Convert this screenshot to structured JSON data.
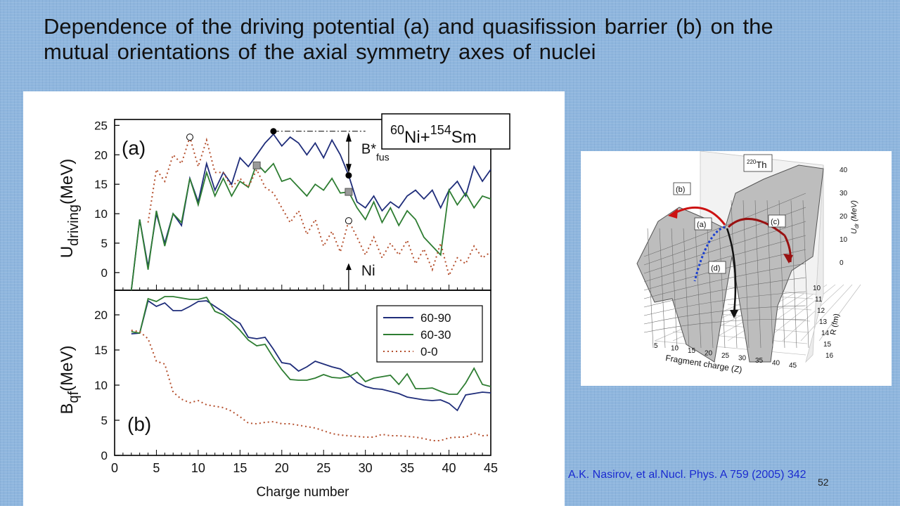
{
  "slide": {
    "title": "Dependence of  the driving potential (a) and  quasifission barrier (b) on  the mutual orientations of the  axial symmetry axes of nuclei",
    "citation": "A.K. Nasirov, et al.Nucl. Phys. A  759 (2005) 342",
    "page_number": "52"
  },
  "chart_data": [
    {
      "type": "line",
      "panel_label": "(a)",
      "reaction_label": {
        "a1": "60",
        "e1": "Ni",
        "plus": "+",
        "a2": "154",
        "e2": "Sm"
      },
      "ylabel": {
        "main": "U",
        "sub": "driving",
        "unit": "(MeV)"
      },
      "ylim": [
        -3,
        26
      ],
      "yticks": [
        0,
        5,
        10,
        15,
        20,
        25
      ],
      "xlim": [
        0,
        45
      ],
      "annotation_barrier": {
        "main": "B*",
        "sub": "fus"
      },
      "annotation_projectile": "Ni",
      "annotation_x": 28,
      "markers": {
        "filled_circles": [
          [
            19,
            24
          ],
          [
            28,
            16.5
          ]
        ],
        "squares": [
          [
            17,
            18.2
          ],
          [
            28,
            13.7
          ]
        ],
        "open_circles": [
          [
            9,
            23
          ],
          [
            28,
            8.8
          ]
        ]
      },
      "series": [
        {
          "name": "60-90",
          "color": "#1f2d7a",
          "style": "solid",
          "x": [
            2,
            3,
            4,
            5,
            6,
            7,
            8,
            9,
            10,
            11,
            12,
            13,
            14,
            15,
            16,
            17,
            18,
            19,
            20,
            21,
            22,
            23,
            24,
            25,
            26,
            27,
            28,
            29,
            30,
            31,
            32,
            33,
            34,
            35,
            36,
            37,
            38,
            39,
            40,
            41,
            42,
            43,
            44,
            45
          ],
          "y": [
            -3,
            9,
            1,
            10,
            5,
            10,
            8,
            16,
            12,
            18.5,
            14,
            17,
            15,
            19.5,
            18,
            20,
            22,
            23.5,
            21.5,
            23,
            22,
            20,
            22,
            19.5,
            22.5,
            20,
            16.5,
            12,
            11,
            13,
            10.5,
            12,
            11,
            13,
            14,
            12.5,
            14,
            11,
            14,
            15.5,
            13,
            18,
            15.5,
            17.5
          ]
        },
        {
          "name": "60-30",
          "color": "#2e7d32",
          "style": "solid",
          "x": [
            2,
            3,
            4,
            5,
            6,
            7,
            8,
            9,
            10,
            11,
            12,
            13,
            14,
            15,
            16,
            17,
            18,
            19,
            20,
            21,
            22,
            23,
            24,
            25,
            26,
            27,
            28,
            29,
            30,
            31,
            32,
            33,
            34,
            35,
            36,
            37,
            38,
            39,
            40,
            41,
            42,
            43,
            44,
            45
          ],
          "y": [
            -3,
            9,
            0.5,
            10.5,
            4.5,
            10,
            8.5,
            16,
            11.5,
            17,
            13,
            16,
            13,
            15.5,
            14.5,
            18.5,
            17,
            18.5,
            15.5,
            16,
            14.5,
            13,
            15,
            14,
            16,
            13.5,
            13.7,
            11,
            9,
            12,
            8.5,
            11,
            8,
            10.5,
            9,
            6,
            4.5,
            3,
            14,
            11.5,
            13.5,
            11,
            13,
            12.5
          ]
        },
        {
          "name": "0-0",
          "color": "#b5502e",
          "style": "dotted",
          "x": [
            4,
            5,
            6,
            7,
            8,
            9,
            10,
            11,
            12,
            13,
            14,
            15,
            16,
            17,
            18,
            19,
            20,
            21,
            22,
            23,
            24,
            25,
            26,
            27,
            28,
            29,
            30,
            31,
            32,
            33,
            34,
            35,
            36,
            37,
            38,
            39,
            40,
            41,
            42,
            43,
            44,
            45
          ],
          "y": [
            8.5,
            17.5,
            15.5,
            20,
            18.5,
            23,
            18,
            22.5,
            17,
            17,
            14.5,
            16,
            14.5,
            17.5,
            14.5,
            13.5,
            11,
            8.5,
            10.5,
            6.5,
            9,
            4.5,
            7,
            3.5,
            8.8,
            6,
            3,
            6,
            2.5,
            5,
            3,
            5.5,
            1.5,
            4,
            0.5,
            5,
            -0.5,
            2.5,
            1.5,
            4.5,
            2.5,
            3.5
          ]
        }
      ]
    },
    {
      "type": "line",
      "panel_label": "(b)",
      "ylabel": {
        "main": "B",
        "sub": "qf",
        "unit": "(MeV)"
      },
      "xlabel": "Charge number",
      "ylim": [
        0,
        23.5
      ],
      "yticks": [
        0,
        5,
        10,
        15,
        20
      ],
      "xlim": [
        0,
        45
      ],
      "xticks": [
        0,
        5,
        10,
        15,
        20,
        25,
        30,
        35,
        40,
        45
      ],
      "legend_position": "top-right",
      "series": [
        {
          "name": "60-90",
          "color": "#1f2d7a",
          "style": "solid",
          "x": [
            2,
            3,
            4,
            5,
            6,
            7,
            8,
            9,
            10,
            11,
            12,
            13,
            14,
            15,
            16,
            17,
            18,
            19,
            20,
            21,
            22,
            23,
            24,
            25,
            26,
            27,
            28,
            29,
            30,
            31,
            32,
            33,
            34,
            35,
            36,
            37,
            38,
            39,
            40,
            41,
            42,
            43,
            44,
            45
          ],
          "y": [
            17.3,
            17.4,
            22,
            21.2,
            21.7,
            20.6,
            20.6,
            21.2,
            21.9,
            22,
            21.2,
            20.4,
            19.5,
            18.8,
            16.8,
            16.6,
            16.8,
            15.1,
            13.2,
            13,
            12,
            12.6,
            13.4,
            13,
            12.6,
            12.3,
            11.5,
            10.4,
            9.8,
            9.5,
            9.4,
            9.1,
            8.8,
            8.3,
            8.1,
            7.9,
            7.8,
            7.9,
            7.4,
            6.4,
            8.6,
            8.8,
            9,
            8.9
          ]
        },
        {
          "name": "60-30",
          "color": "#2e7d32",
          "style": "solid",
          "x": [
            2,
            3,
            4,
            5,
            6,
            7,
            8,
            9,
            10,
            11,
            12,
            13,
            14,
            15,
            16,
            17,
            18,
            19,
            20,
            21,
            22,
            23,
            24,
            25,
            26,
            27,
            28,
            29,
            30,
            31,
            32,
            33,
            34,
            35,
            36,
            37,
            38,
            39,
            40,
            41,
            42,
            43,
            44,
            45
          ],
          "y": [
            17.6,
            17.4,
            22.3,
            21.9,
            22.6,
            22.6,
            22.4,
            22.2,
            22.2,
            22.5,
            20.5,
            20,
            19,
            17.8,
            16.4,
            15.6,
            15.8,
            13.9,
            12.2,
            10.8,
            10.7,
            10.7,
            11,
            11.5,
            11.1,
            11,
            11.2,
            11.8,
            10.5,
            11,
            11.2,
            11.4,
            10.1,
            11.6,
            9.5,
            9.5,
            9.6,
            9.1,
            8.7,
            8.7,
            10.3,
            12.4,
            10.1,
            9.8
          ]
        },
        {
          "name": "0-0",
          "color": "#b5502e",
          "style": "dotted",
          "x": [
            2,
            3,
            4,
            5,
            6,
            7,
            8,
            9,
            10,
            11,
            12,
            13,
            14,
            15,
            16,
            17,
            18,
            19,
            20,
            21,
            22,
            23,
            24,
            25,
            26,
            27,
            28,
            29,
            30,
            31,
            32,
            33,
            34,
            35,
            36,
            37,
            38,
            39,
            40,
            41,
            42,
            43,
            44,
            45
          ],
          "y": [
            17.8,
            17.6,
            16.6,
            13.4,
            13,
            9,
            8,
            7.5,
            7.8,
            7.2,
            7,
            6.8,
            6.3,
            5.5,
            4.6,
            4.5,
            4.7,
            4.8,
            4.5,
            4.5,
            4.3,
            4.1,
            3.9,
            3.5,
            3.1,
            2.9,
            2.8,
            2.7,
            2.6,
            2.6,
            3,
            2.8,
            2.8,
            2.7,
            2.6,
            2.4,
            2.1,
            2.1,
            2.5,
            2.6,
            2.6,
            3.2,
            2.8,
            2.9
          ]
        }
      ]
    }
  ],
  "inset": {
    "nucleus_label": {
      "mass": "220",
      "element": "Th"
    },
    "path_labels": [
      "(a)",
      "(b)",
      "(c)",
      "(d)"
    ],
    "zlabel": {
      "main": "U",
      "sub": "dr",
      "unit": "(MeV)"
    },
    "zticks": [
      0,
      10,
      20,
      30,
      40
    ],
    "rlabel": "R (fm)",
    "rticks": [
      10,
      11,
      12,
      13,
      14,
      15,
      16
    ],
    "xlabel": "Fragment charge (Z)",
    "xticks": [
      5,
      10,
      15,
      20,
      25,
      30,
      35,
      40,
      45
    ],
    "colors": {
      "path_b": "#cc1111",
      "path_a": "#1a3fd0",
      "path_c": "#991111",
      "path_d": "#111111"
    }
  }
}
